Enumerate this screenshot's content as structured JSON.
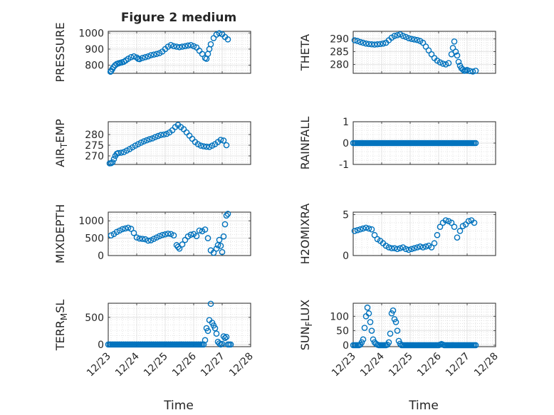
{
  "figure": {
    "title": "Figure 2 medium",
    "shared_x_label": "Time",
    "marker_color": "#0072BD"
  },
  "chart_data": [
    {
      "id": "pressure",
      "type": "scatter",
      "col": 0,
      "row": 0,
      "ylabel": "PRESSURE",
      "ylim": [
        750,
        1010
      ],
      "yticks": [
        800,
        900,
        1000
      ],
      "ytick_labels": [
        "800",
        "900",
        "1000"
      ],
      "x": [
        0.08,
        0.1,
        0.14,
        0.18,
        0.24,
        0.3,
        0.36,
        0.42,
        0.48,
        0.55,
        0.62,
        0.7,
        0.8,
        0.9,
        1.0,
        1.05,
        1.1,
        1.2,
        1.3,
        1.4,
        1.5,
        1.6,
        1.7,
        1.8,
        1.9,
        2.0,
        2.1,
        2.2,
        2.3,
        2.4,
        2.5,
        2.6,
        2.7,
        2.8,
        2.9,
        3.0,
        3.1,
        3.2,
        3.3,
        3.4,
        3.45,
        3.5,
        3.55,
        3.6,
        3.7,
        3.8,
        3.9,
        4.0,
        4.1,
        4.2
      ],
      "y": [
        760,
        765,
        775,
        788,
        800,
        808,
        812,
        815,
        818,
        822,
        830,
        840,
        850,
        855,
        848,
        840,
        838,
        845,
        850,
        855,
        862,
        866,
        870,
        875,
        885,
        900,
        915,
        925,
        918,
        915,
        912,
        915,
        918,
        922,
        925,
        918,
        910,
        890,
        870,
        845,
        840,
        870,
        900,
        930,
        968,
        990,
        998,
        992,
        975,
        960
      ]
    },
    {
      "id": "theta",
      "type": "scatter",
      "col": 1,
      "row": 0,
      "ylabel": "THETA",
      "ylim": [
        276.5,
        293
      ],
      "yticks": [
        280,
        285,
        290
      ],
      "ytick_labels": [
        "280",
        "285",
        "290"
      ],
      "x": [
        0.05,
        0.15,
        0.25,
        0.35,
        0.45,
        0.55,
        0.65,
        0.75,
        0.85,
        0.95,
        1.05,
        1.15,
        1.25,
        1.35,
        1.45,
        1.55,
        1.65,
        1.75,
        1.85,
        1.95,
        2.05,
        2.15,
        2.25,
        2.35,
        2.45,
        2.55,
        2.65,
        2.75,
        2.85,
        2.95,
        3.05,
        3.15,
        3.25,
        3.35,
        3.45,
        3.5,
        3.55,
        3.6,
        3.65,
        3.7,
        3.75,
        3.8,
        3.85,
        3.9,
        3.95,
        4.0,
        4.1,
        4.2,
        4.3
      ],
      "y": [
        289.5,
        289.2,
        288.8,
        288.5,
        288.2,
        288.0,
        287.9,
        287.8,
        287.9,
        288.0,
        288.2,
        288.5,
        289.5,
        290.5,
        291.2,
        291.5,
        291.8,
        291.2,
        290.8,
        290.3,
        290.0,
        289.8,
        289.6,
        289.2,
        288.5,
        287.0,
        285.5,
        284.0,
        282.5,
        281.5,
        280.8,
        280.3,
        280.0,
        280.5,
        284.0,
        286.5,
        289.0,
        285.0,
        283.5,
        281.0,
        279.5,
        278.5,
        278.0,
        277.5,
        277.6,
        277.8,
        277.4,
        277.2,
        277.5
      ]
    },
    {
      "id": "air_temp",
      "type": "scatter",
      "col": 0,
      "row": 1,
      "ylabel": "AIR_TEMP",
      "ylabel_parts": [
        "AIR",
        "T",
        "EMP"
      ],
      "ylim": [
        266,
        286
      ],
      "yticks": [
        270,
        275,
        280
      ],
      "ytick_labels": [
        "270",
        "275",
        "280"
      ],
      "x": [
        0.05,
        0.1,
        0.15,
        0.2,
        0.25,
        0.3,
        0.35,
        0.45,
        0.55,
        0.65,
        0.75,
        0.85,
        0.95,
        1.05,
        1.15,
        1.25,
        1.35,
        1.45,
        1.55,
        1.65,
        1.75,
        1.85,
        1.95,
        2.05,
        2.15,
        2.25,
        2.35,
        2.45,
        2.55,
        2.65,
        2.75,
        2.85,
        2.95,
        3.05,
        3.15,
        3.25,
        3.35,
        3.45,
        3.55,
        3.65,
        3.75,
        3.85,
        3.95,
        4.05,
        4.15
      ],
      "y": [
        266.5,
        266.6,
        267.0,
        268.5,
        270.0,
        271.0,
        271.3,
        271.5,
        271.8,
        272.5,
        273.2,
        274.0,
        274.8,
        275.5,
        276.2,
        276.8,
        277.3,
        277.8,
        278.2,
        278.8,
        279.3,
        279.8,
        280.0,
        280.3,
        281.0,
        282.0,
        283.5,
        284.5,
        283.5,
        282.5,
        281.0,
        279.5,
        278.0,
        276.5,
        275.5,
        274.8,
        274.5,
        274.3,
        274.2,
        274.8,
        275.5,
        276.5,
        277.5,
        277.2,
        275.0
      ]
    },
    {
      "id": "rainfall",
      "type": "scatter",
      "col": 1,
      "row": 1,
      "ylabel": "RAINFALL",
      "ylim": [
        -1,
        1
      ],
      "yticks": [
        -1,
        0,
        1
      ],
      "ytick_labels": [
        "-1",
        "0",
        "1"
      ],
      "x_range": [
        0.0,
        4.3
      ],
      "x_step": 0.05,
      "y_const": 0
    },
    {
      "id": "mixdepth",
      "type": "scatter",
      "col": 0,
      "row": 2,
      "ylabel": "MIXDEPTH",
      "ylim": [
        0,
        1250
      ],
      "yticks": [
        0,
        500,
        1000
      ],
      "ytick_labels": [
        "0",
        "500",
        "1000"
      ],
      "x": [
        0.1,
        0.2,
        0.3,
        0.4,
        0.5,
        0.6,
        0.7,
        0.8,
        0.9,
        1.0,
        1.1,
        1.2,
        1.3,
        1.4,
        1.5,
        1.6,
        1.7,
        1.8,
        1.9,
        2.0,
        2.1,
        2.2,
        2.3,
        2.4,
        2.45,
        2.5,
        2.6,
        2.7,
        2.8,
        2.9,
        3.0,
        3.1,
        3.2,
        3.3,
        3.4,
        3.5,
        3.6,
        3.7,
        3.8,
        3.85,
        3.9,
        3.95,
        4.0,
        4.05,
        4.1,
        4.15,
        4.2
      ],
      "y": [
        580,
        620,
        680,
        720,
        760,
        780,
        800,
        770,
        650,
        520,
        490,
        480,
        470,
        430,
        440,
        480,
        520,
        560,
        590,
        610,
        630,
        620,
        580,
        300,
        250,
        200,
        320,
        450,
        550,
        600,
        620,
        560,
        720,
        700,
        750,
        500,
        150,
        80,
        200,
        300,
        450,
        280,
        100,
        550,
        900,
        1150,
        1200
      ]
    },
    {
      "id": "h2omixra",
      "type": "scatter",
      "col": 1,
      "row": 2,
      "ylabel": "H2OMIXRA",
      "ylim": [
        0,
        5.3
      ],
      "yticks": [
        0,
        5
      ],
      "ytick_labels": [
        "0",
        "5"
      ],
      "x": [
        0.05,
        0.15,
        0.25,
        0.35,
        0.45,
        0.55,
        0.65,
        0.75,
        0.85,
        0.95,
        1.05,
        1.15,
        1.25,
        1.35,
        1.45,
        1.55,
        1.65,
        1.75,
        1.85,
        1.95,
        2.05,
        2.15,
        2.25,
        2.35,
        2.45,
        2.55,
        2.65,
        2.75,
        2.85,
        2.95,
        3.05,
        3.15,
        3.25,
        3.35,
        3.45,
        3.55,
        3.65,
        3.75,
        3.85,
        3.95,
        4.05,
        4.15,
        4.25
      ],
      "y": [
        3.0,
        3.1,
        3.2,
        3.3,
        3.4,
        3.3,
        3.2,
        2.5,
        2.0,
        1.8,
        1.5,
        1.2,
        1.0,
        0.9,
        0.9,
        0.8,
        0.9,
        1.0,
        0.8,
        0.7,
        0.8,
        0.9,
        1.0,
        1.1,
        1.0,
        1.1,
        1.2,
        1.0,
        1.5,
        2.5,
        3.5,
        4.0,
        4.3,
        4.2,
        4.0,
        3.5,
        2.2,
        3.0,
        3.6,
        3.8,
        4.2,
        4.3,
        4.0
      ]
    },
    {
      "id": "terr_msl",
      "type": "scatter",
      "col": 0,
      "row": 3,
      "ylabel": "TERR_MSL",
      "ylabel_parts": [
        "TERR",
        "M",
        "SL"
      ],
      "ylim": [
        -40,
        760
      ],
      "yticks": [
        0,
        500
      ],
      "ytick_labels": [
        "0",
        "500"
      ],
      "x": [
        3.4,
        3.45,
        3.5,
        3.55,
        3.6,
        3.65,
        3.7,
        3.75,
        3.8,
        3.85,
        3.9,
        3.95,
        4.0,
        4.05,
        4.1,
        4.15
      ],
      "y": [
        80,
        300,
        250,
        450,
        750,
        400,
        350,
        300,
        200,
        50,
        20,
        0,
        10,
        150,
        120,
        140
      ],
      "x_range_zero": [
        0.0,
        4.3
      ],
      "x_step": 0.05
    },
    {
      "id": "sun_flux",
      "type": "scatter",
      "col": 1,
      "row": 3,
      "ylabel": "SUN_FLUX",
      "ylabel_parts": [
        "SUN",
        "F",
        "LUX"
      ],
      "ylim": [
        -5,
        145
      ],
      "yticks": [
        0,
        50,
        100
      ],
      "ytick_labels": [
        "0",
        "50",
        "100"
      ],
      "x": [
        0.25,
        0.3,
        0.35,
        0.4,
        0.45,
        0.5,
        0.55,
        0.6,
        0.65,
        0.7,
        0.75,
        0.8,
        0.85,
        0.9,
        1.2,
        1.25,
        1.3,
        1.35,
        1.4,
        1.45,
        1.5,
        1.55,
        1.6,
        1.65,
        3.05,
        3.1,
        3.15
      ],
      "y": [
        2,
        10,
        20,
        60,
        100,
        130,
        110,
        80,
        50,
        20,
        10,
        5,
        2,
        0,
        2,
        10,
        40,
        110,
        120,
        90,
        80,
        50,
        15,
        5,
        2,
        4,
        2
      ],
      "x_range_zero": [
        0.0,
        4.3
      ],
      "x_step": 0.05
    }
  ],
  "x_axis": {
    "xlim": [
      0,
      5
    ],
    "xticks": [
      0,
      1,
      2,
      3,
      4,
      5
    ],
    "xtick_labels": [
      "12/23",
      "12/24",
      "12/25",
      "12/26",
      "12/27",
      "12/28"
    ]
  }
}
